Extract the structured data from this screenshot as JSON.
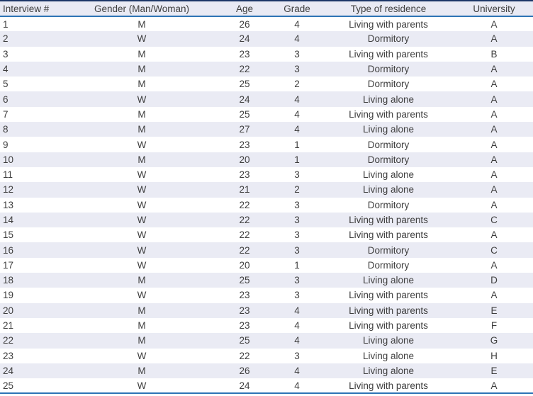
{
  "table": {
    "columns": [
      {
        "key": "interview",
        "label": "Interview #",
        "align": "left"
      },
      {
        "key": "gender",
        "label": "Gender (Man/Woman)",
        "align": "center"
      },
      {
        "key": "age",
        "label": "Age",
        "align": "center"
      },
      {
        "key": "grade",
        "label": "Grade",
        "align": "center"
      },
      {
        "key": "residence",
        "label": "Type of residence",
        "align": "center"
      },
      {
        "key": "university",
        "label": "University",
        "align": "center"
      }
    ],
    "rows": [
      {
        "interview": "1",
        "gender": "M",
        "age": "26",
        "grade": "4",
        "residence": "Living with parents",
        "university": "A"
      },
      {
        "interview": "2",
        "gender": "W",
        "age": "24",
        "grade": "4",
        "residence": "Dormitory",
        "university": "A"
      },
      {
        "interview": "3",
        "gender": "M",
        "age": "23",
        "grade": "3",
        "residence": "Living with parents",
        "university": "B"
      },
      {
        "interview": "4",
        "gender": "M",
        "age": "22",
        "grade": "3",
        "residence": "Dormitory",
        "university": "A"
      },
      {
        "interview": "5",
        "gender": "M",
        "age": "25",
        "grade": "2",
        "residence": "Dormitory",
        "university": "A"
      },
      {
        "interview": "6",
        "gender": "W",
        "age": "24",
        "grade": "4",
        "residence": "Living alone",
        "university": "A"
      },
      {
        "interview": "7",
        "gender": "M",
        "age": "25",
        "grade": "4",
        "residence": "Living with parents",
        "university": "A"
      },
      {
        "interview": "8",
        "gender": "M",
        "age": "27",
        "grade": "4",
        "residence": "Living alone",
        "university": "A"
      },
      {
        "interview": "9",
        "gender": "W",
        "age": "23",
        "grade": "1",
        "residence": "Dormitory",
        "university": "A"
      },
      {
        "interview": "10",
        "gender": "M",
        "age": "20",
        "grade": "1",
        "residence": "Dormitory",
        "university": "A"
      },
      {
        "interview": "11",
        "gender": "W",
        "age": "23",
        "grade": "3",
        "residence": "Living alone",
        "university": "A"
      },
      {
        "interview": "12",
        "gender": "W",
        "age": "21",
        "grade": "2",
        "residence": "Living alone",
        "university": "A"
      },
      {
        "interview": "13",
        "gender": "W",
        "age": "22",
        "grade": "3",
        "residence": "Dormitory",
        "university": "A"
      },
      {
        "interview": "14",
        "gender": "W",
        "age": "22",
        "grade": "3",
        "residence": "Living with parents",
        "university": "C"
      },
      {
        "interview": "15",
        "gender": "W",
        "age": "22",
        "grade": "3",
        "residence": "Living with parents",
        "university": "A"
      },
      {
        "interview": "16",
        "gender": "W",
        "age": "22",
        "grade": "3",
        "residence": "Dormitory",
        "university": "C"
      },
      {
        "interview": "17",
        "gender": "W",
        "age": "20",
        "grade": "1",
        "residence": "Dormitory",
        "university": "A"
      },
      {
        "interview": "18",
        "gender": "M",
        "age": "25",
        "grade": "3",
        "residence": "Living alone",
        "university": "D"
      },
      {
        "interview": "19",
        "gender": "W",
        "age": "23",
        "grade": "3",
        "residence": "Living with parents",
        "university": "A"
      },
      {
        "interview": "20",
        "gender": "M",
        "age": "23",
        "grade": "4",
        "residence": "Living with parents",
        "university": "E"
      },
      {
        "interview": "21",
        "gender": "M",
        "age": "23",
        "grade": "4",
        "residence": "Living with parents",
        "university": "F"
      },
      {
        "interview": "22",
        "gender": "M",
        "age": "25",
        "grade": "4",
        "residence": "Living alone",
        "university": "G"
      },
      {
        "interview": "23",
        "gender": "W",
        "age": "22",
        "grade": "3",
        "residence": "Living alone",
        "university": "H"
      },
      {
        "interview": "24",
        "gender": "M",
        "age": "26",
        "grade": "4",
        "residence": "Living alone",
        "university": "E"
      },
      {
        "interview": "25",
        "gender": "W",
        "age": "24",
        "grade": "4",
        "residence": "Living with parents",
        "university": "A"
      }
    ]
  },
  "colors": {
    "top_border": "#1c3667",
    "header_rule": "#2e74b5",
    "bottom_rule": "#2e74b5",
    "header_bg": "#e9eaf4",
    "stripe_bg": "#eaebf4",
    "text": "#3e3e3e"
  }
}
